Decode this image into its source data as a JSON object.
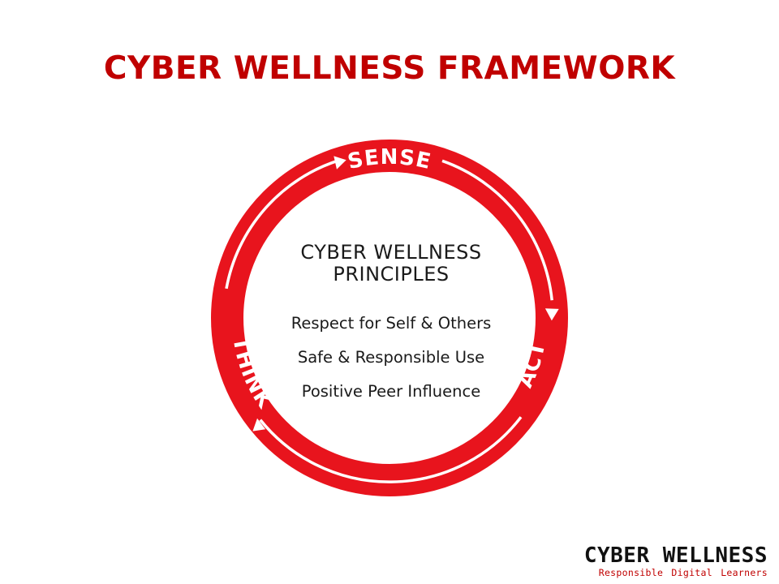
{
  "title": "CYBER WELLNESS FRAMEWORK",
  "cycle": {
    "stages": [
      "SENSE",
      "THINK",
      "ACT"
    ],
    "ring_color": "#e8141d",
    "arrow_color": "#ffffff"
  },
  "principles": {
    "heading_line1": "CYBER WELLNESS",
    "heading_line2": "PRINCIPLES",
    "items": [
      "Respect for Self & Others",
      "Safe & Responsible Use",
      "Positive Peer Influence"
    ]
  },
  "logo": {
    "name": "CYBER WELLNESS",
    "tagline": "Responsible Digital Learners"
  },
  "colors": {
    "title": "#c00000",
    "tagline": "#c00000"
  }
}
